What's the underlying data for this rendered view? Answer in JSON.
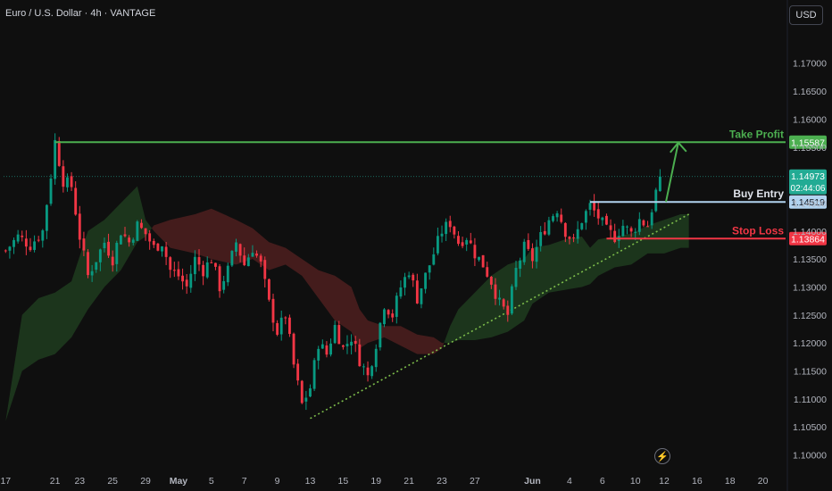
{
  "title": "Euro / U.S. Dollar · 4h · VANTAGE",
  "currency_button": "USD",
  "colors": {
    "background": "#0f0f0f",
    "up": "#089981",
    "down": "#f23645",
    "take_profit": "#4caf50",
    "buy_entry": "#b2d4f0",
    "stop_loss": "#f23645",
    "cloud_bull": "#1e3a1e",
    "cloud_bear": "#4a1e1e",
    "trendline": "#7dbd4b",
    "current_price": "#22ab94"
  },
  "chart_data": {
    "type": "candlestick",
    "instrument": "Euro / U.S. Dollar",
    "timeframe": "4h",
    "broker": "VANTAGE",
    "ylim": [
      1.098,
      1.1765
    ],
    "y_ticks": [
      "1.17000",
      "1.16500",
      "1.16000",
      "1.15500",
      "1.15000",
      "1.14500",
      "1.14000",
      "1.13500",
      "1.13000",
      "1.12500",
      "1.12000",
      "1.11500",
      "1.11000",
      "1.10500",
      "1.10000"
    ],
    "x_ticks": [
      {
        "label": "17",
        "index": 0
      },
      {
        "label": "21",
        "index": 12
      },
      {
        "label": "23",
        "index": 18
      },
      {
        "label": "25",
        "index": 26
      },
      {
        "label": "29",
        "index": 34
      },
      {
        "label": "May",
        "index": 42,
        "bold": true
      },
      {
        "label": "5",
        "index": 50
      },
      {
        "label": "7",
        "index": 58
      },
      {
        "label": "9",
        "index": 66
      },
      {
        "label": "13",
        "index": 74
      },
      {
        "label": "15",
        "index": 82
      },
      {
        "label": "19",
        "index": 90
      },
      {
        "label": "21",
        "index": 98
      },
      {
        "label": "23",
        "index": 106
      },
      {
        "label": "27",
        "index": 114
      },
      {
        "label": "Jun",
        "index": 128,
        "bold": true
      },
      {
        "label": "4",
        "index": 137
      },
      {
        "label": "6",
        "index": 145
      },
      {
        "label": "10",
        "index": 153
      },
      {
        "label": "12",
        "index": 160
      },
      {
        "label": "16",
        "index": 168
      },
      {
        "label": "18",
        "index": 176
      },
      {
        "label": "20",
        "index": 184
      }
    ],
    "close_path": [
      [
        0,
        1.1365
      ],
      [
        3,
        1.139
      ],
      [
        6,
        1.1375
      ],
      [
        9,
        1.14
      ],
      [
        11,
        1.15
      ],
      [
        12,
        1.156
      ],
      [
        14,
        1.149
      ],
      [
        16,
        1.148
      ],
      [
        18,
        1.139
      ],
      [
        20,
        1.132
      ],
      [
        22,
        1.135
      ],
      [
        24,
        1.138
      ],
      [
        26,
        1.135
      ],
      [
        28,
        1.14
      ],
      [
        30,
        1.138
      ],
      [
        32,
        1.141
      ],
      [
        34,
        1.1395
      ],
      [
        36,
        1.137
      ],
      [
        38,
        1.138
      ],
      [
        40,
        1.133
      ],
      [
        42,
        1.132
      ],
      [
        44,
        1.13
      ],
      [
        46,
        1.135
      ],
      [
        48,
        1.133
      ],
      [
        50,
        1.135
      ],
      [
        52,
        1.13
      ],
      [
        54,
        1.133
      ],
      [
        56,
        1.138
      ],
      [
        58,
        1.134
      ],
      [
        60,
        1.137
      ],
      [
        62,
        1.134
      ],
      [
        64,
        1.127
      ],
      [
        66,
        1.122
      ],
      [
        68,
        1.125
      ],
      [
        70,
        1.116
      ],
      [
        72,
        1.109
      ],
      [
        74,
        1.112
      ],
      [
        76,
        1.12
      ],
      [
        78,
        1.118
      ],
      [
        80,
        1.123
      ],
      [
        82,
        1.119
      ],
      [
        84,
        1.121
      ],
      [
        86,
        1.117
      ],
      [
        88,
        1.114
      ],
      [
        90,
        1.12
      ],
      [
        92,
        1.127
      ],
      [
        94,
        1.125
      ],
      [
        96,
        1.13
      ],
      [
        98,
        1.133
      ],
      [
        100,
        1.128
      ],
      [
        102,
        1.132
      ],
      [
        104,
        1.136
      ],
      [
        106,
        1.14
      ],
      [
        108,
        1.1415
      ],
      [
        110,
        1.138
      ],
      [
        112,
        1.139
      ],
      [
        114,
        1.136
      ],
      [
        116,
        1.134
      ],
      [
        118,
        1.131
      ],
      [
        120,
        1.127
      ],
      [
        122,
        1.125
      ],
      [
        124,
        1.133
      ],
      [
        126,
        1.137
      ],
      [
        128,
        1.135
      ],
      [
        130,
        1.139
      ],
      [
        132,
        1.142
      ],
      [
        134,
        1.144
      ],
      [
        136,
        1.14
      ],
      [
        138,
        1.138
      ],
      [
        140,
        1.142
      ],
      [
        142,
        1.1445
      ],
      [
        144,
        1.1425
      ],
      [
        146,
        1.14
      ],
      [
        148,
        1.139
      ],
      [
        150,
        1.141
      ],
      [
        152,
        1.1395
      ],
      [
        154,
        1.142
      ],
      [
        156,
        1.141
      ],
      [
        158,
        1.147
      ],
      [
        159,
        1.1497
      ]
    ],
    "cloud": [
      [
        0,
        1.106,
        1.106
      ],
      [
        4,
        1.115,
        1.125
      ],
      [
        8,
        1.117,
        1.128
      ],
      [
        12,
        1.118,
        1.129
      ],
      [
        16,
        1.121,
        1.131
      ],
      [
        20,
        1.126,
        1.14
      ],
      [
        24,
        1.13,
        1.142
      ],
      [
        28,
        1.133,
        1.145
      ],
      [
        32,
        1.138,
        1.148
      ],
      [
        34,
        1.139,
        1.142
      ],
      [
        36,
        1.141,
        1.14
      ],
      [
        40,
        1.142,
        1.137
      ],
      [
        46,
        1.143,
        1.136
      ],
      [
        50,
        1.144,
        1.135
      ],
      [
        56,
        1.142,
        1.134
      ],
      [
        60,
        1.1405,
        1.135
      ],
      [
        64,
        1.138,
        1.133
      ],
      [
        68,
        1.137,
        1.134
      ],
      [
        72,
        1.135,
        1.132
      ],
      [
        76,
        1.133,
        1.128
      ],
      [
        80,
        1.132,
        1.124
      ],
      [
        84,
        1.13,
        1.122
      ],
      [
        86,
        1.126,
        1.119
      ],
      [
        88,
        1.124,
        1.12
      ],
      [
        92,
        1.123,
        1.121
      ],
      [
        96,
        1.123,
        1.1195
      ],
      [
        100,
        1.1215,
        1.118
      ],
      [
        104,
        1.121,
        1.118
      ],
      [
        106,
        1.12,
        1.119
      ],
      [
        108,
        1.12,
        1.123
      ],
      [
        110,
        1.1205,
        1.126
      ],
      [
        114,
        1.1205,
        1.129
      ],
      [
        118,
        1.121,
        1.132
      ],
      [
        122,
        1.122,
        1.134
      ],
      [
        126,
        1.124,
        1.135
      ],
      [
        128,
        1.127,
        1.137
      ],
      [
        132,
        1.129,
        1.1375
      ],
      [
        136,
        1.1295,
        1.1385
      ],
      [
        140,
        1.13,
        1.139
      ],
      [
        142,
        1.1305,
        1.137
      ],
      [
        144,
        1.132,
        1.1385
      ],
      [
        148,
        1.1335,
        1.139
      ],
      [
        152,
        1.134,
        1.1395
      ],
      [
        156,
        1.136,
        1.141
      ],
      [
        160,
        1.136,
        1.142
      ],
      [
        164,
        1.137,
        1.143
      ],
      [
        166,
        1.137,
        1.143
      ]
    ],
    "trendline": {
      "from": [
        74,
        1.1065
      ],
      "to": [
        166,
        1.143
      ],
      "style": "dotted"
    },
    "levels": [
      {
        "name": "Take Profit",
        "value": "1.15587",
        "price": 1.15587,
        "from_index": 12
      },
      {
        "name": "Buy Entry",
        "value": "1.14519",
        "price": 1.14519,
        "from_index": 142
      },
      {
        "name": "Stop Loss",
        "value": "1.13864",
        "price": 1.13864,
        "from_index": 146
      }
    ],
    "current_price": {
      "value": "1.14973",
      "countdown": "02:44:06",
      "price": 1.14973
    },
    "projection_arrow": {
      "from": [
        160,
        1.1452
      ],
      "to": [
        163,
        1.1558
      ]
    }
  }
}
